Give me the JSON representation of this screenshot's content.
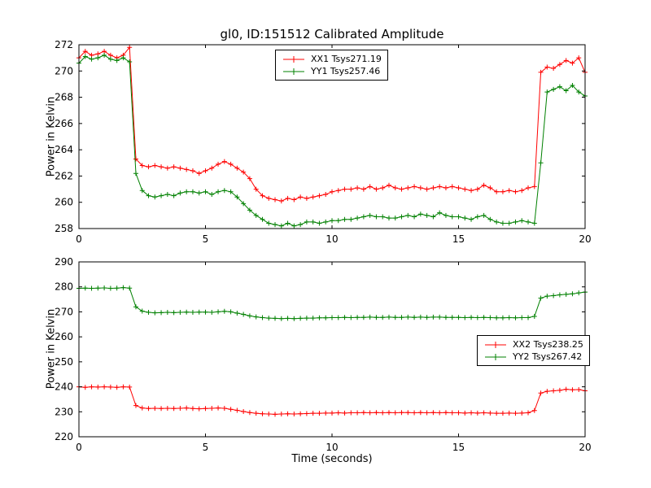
{
  "title": "gl0, ID:151512 Calibrated Amplitude",
  "chart_data": [
    {
      "type": "line",
      "marker": "+",
      "xlabel": "",
      "ylabel": "Power in Kelvin",
      "xlim": [
        0,
        20
      ],
      "ylim": [
        258,
        272
      ],
      "xticks": [
        0,
        5,
        10,
        15,
        20
      ],
      "yticks": [
        258,
        260,
        262,
        264,
        266,
        268,
        270,
        272
      ],
      "legend_position": "top-center",
      "grid": false,
      "x": [
        0,
        0.25,
        0.5,
        0.75,
        1,
        1.25,
        1.5,
        1.75,
        2,
        2.25,
        2.5,
        2.75,
        3,
        3.25,
        3.5,
        3.75,
        4,
        4.25,
        4.5,
        4.75,
        5,
        5.25,
        5.5,
        5.75,
        6,
        6.25,
        6.5,
        6.75,
        7,
        7.25,
        7.5,
        7.75,
        8,
        8.25,
        8.5,
        8.75,
        9,
        9.25,
        9.5,
        9.75,
        10,
        10.25,
        10.5,
        10.75,
        11,
        11.25,
        11.5,
        11.75,
        12,
        12.25,
        12.5,
        12.75,
        13,
        13.25,
        13.5,
        13.75,
        14,
        14.25,
        14.5,
        14.75,
        15,
        15.25,
        15.5,
        15.75,
        16,
        16.25,
        16.5,
        16.75,
        17,
        17.25,
        17.5,
        17.75,
        18,
        18.25,
        18.5,
        18.75,
        19,
        19.25,
        19.5,
        19.75,
        20
      ],
      "series": [
        {
          "name": "XX1 Tsys271.19",
          "color": "#ff0000",
          "values": [
            271.0,
            271.5,
            271.2,
            271.3,
            271.5,
            271.2,
            271.0,
            271.2,
            271.8,
            263.3,
            262.8,
            262.7,
            262.8,
            262.7,
            262.6,
            262.7,
            262.6,
            262.5,
            262.4,
            262.2,
            262.4,
            262.6,
            262.9,
            263.1,
            262.9,
            262.6,
            262.3,
            261.8,
            261.0,
            260.5,
            260.3,
            260.2,
            260.1,
            260.3,
            260.2,
            260.4,
            260.3,
            260.4,
            260.5,
            260.6,
            260.8,
            260.9,
            261.0,
            261.0,
            261.1,
            261.0,
            261.2,
            261.0,
            261.1,
            261.3,
            261.1,
            261.0,
            261.1,
            261.2,
            261.1,
            261.0,
            261.1,
            261.2,
            261.1,
            261.2,
            261.1,
            261.0,
            260.9,
            261.0,
            261.3,
            261.1,
            260.8,
            260.8,
            260.9,
            260.8,
            260.9,
            261.1,
            261.2,
            269.9,
            270.3,
            270.2,
            270.5,
            270.8,
            270.6,
            271.0,
            269.9
          ]
        },
        {
          "name": "YY1 Tsys257.46",
          "color": "#008000",
          "values": [
            270.6,
            271.1,
            270.9,
            271.0,
            271.2,
            270.9,
            270.8,
            271.0,
            270.7,
            262.2,
            260.9,
            260.5,
            260.4,
            260.5,
            260.6,
            260.5,
            260.7,
            260.8,
            260.8,
            260.7,
            260.8,
            260.6,
            260.8,
            260.9,
            260.8,
            260.4,
            259.9,
            259.4,
            259.0,
            258.7,
            258.4,
            258.3,
            258.2,
            258.4,
            258.2,
            258.3,
            258.5,
            258.5,
            258.4,
            258.5,
            258.6,
            258.6,
            258.7,
            258.7,
            258.8,
            258.9,
            259.0,
            258.9,
            258.9,
            258.8,
            258.8,
            258.9,
            259.0,
            258.9,
            259.1,
            259.0,
            258.9,
            259.2,
            259.0,
            258.9,
            258.9,
            258.8,
            258.7,
            258.9,
            259.0,
            258.7,
            258.5,
            258.4,
            258.4,
            258.5,
            258.6,
            258.5,
            258.4,
            263.0,
            268.4,
            268.6,
            268.8,
            268.5,
            268.9,
            268.4,
            268.1
          ]
        }
      ]
    },
    {
      "type": "line",
      "marker": "+",
      "xlabel": "Time (seconds)",
      "ylabel": "Power in Kelvin",
      "xlim": [
        0,
        20
      ],
      "ylim": [
        220,
        290
      ],
      "xticks": [
        0,
        5,
        10,
        15,
        20
      ],
      "yticks": [
        220,
        230,
        240,
        250,
        260,
        270,
        280,
        290
      ],
      "legend_position": "right",
      "grid": false,
      "x": [
        0,
        0.25,
        0.5,
        0.75,
        1,
        1.25,
        1.5,
        1.75,
        2,
        2.25,
        2.5,
        2.75,
        3,
        3.25,
        3.5,
        3.75,
        4,
        4.25,
        4.5,
        4.75,
        5,
        5.25,
        5.5,
        5.75,
        6,
        6.25,
        6.5,
        6.75,
        7,
        7.25,
        7.5,
        7.75,
        8,
        8.25,
        8.5,
        8.75,
        9,
        9.25,
        9.5,
        9.75,
        10,
        10.25,
        10.5,
        10.75,
        11,
        11.25,
        11.5,
        11.75,
        12,
        12.25,
        12.5,
        12.75,
        13,
        13.25,
        13.5,
        13.75,
        14,
        14.25,
        14.5,
        14.75,
        15,
        15.25,
        15.5,
        15.75,
        16,
        16.25,
        16.5,
        16.75,
        17,
        17.25,
        17.5,
        17.75,
        18,
        18.25,
        18.5,
        18.75,
        19,
        19.25,
        19.5,
        19.75,
        20
      ],
      "series": [
        {
          "name": "XX2 Tsys238.25",
          "color": "#ff0000",
          "values": [
            240.0,
            239.8,
            240.0,
            239.9,
            240.0,
            239.9,
            239.8,
            240.0,
            239.9,
            232.5,
            231.5,
            231.3,
            231.4,
            231.3,
            231.4,
            231.3,
            231.4,
            231.5,
            231.3,
            231.2,
            231.3,
            231.4,
            231.5,
            231.4,
            231.0,
            230.6,
            230.1,
            229.7,
            229.4,
            229.2,
            229.1,
            229.0,
            229.1,
            229.2,
            229.1,
            229.2,
            229.3,
            229.4,
            229.4,
            229.5,
            229.5,
            229.6,
            229.5,
            229.6,
            229.6,
            229.7,
            229.6,
            229.7,
            229.6,
            229.7,
            229.6,
            229.7,
            229.7,
            229.6,
            229.7,
            229.6,
            229.7,
            229.6,
            229.7,
            229.6,
            229.6,
            229.5,
            229.6,
            229.5,
            229.6,
            229.5,
            229.4,
            229.4,
            229.5,
            229.4,
            229.5,
            229.6,
            230.5,
            237.5,
            238.2,
            238.4,
            238.6,
            239.0,
            238.8,
            238.9,
            238.4
          ]
        },
        {
          "name": "YY2 Tsys267.42",
          "color": "#008000",
          "values": [
            279.4,
            279.5,
            279.4,
            279.5,
            279.6,
            279.4,
            279.5,
            279.7,
            279.5,
            272.0,
            270.3,
            269.8,
            269.6,
            269.7,
            269.8,
            269.7,
            269.8,
            269.9,
            269.8,
            269.9,
            269.9,
            269.8,
            270.0,
            270.2,
            270.0,
            269.5,
            269.0,
            268.4,
            268.0,
            267.7,
            267.5,
            267.4,
            267.3,
            267.4,
            267.3,
            267.4,
            267.5,
            267.5,
            267.6,
            267.6,
            267.7,
            267.7,
            267.8,
            267.7,
            267.8,
            267.8,
            267.9,
            267.8,
            267.8,
            267.9,
            267.8,
            267.8,
            267.9,
            267.8,
            267.9,
            267.8,
            267.9,
            267.9,
            267.8,
            267.8,
            267.8,
            267.7,
            267.8,
            267.7,
            267.8,
            267.7,
            267.6,
            267.6,
            267.7,
            267.6,
            267.7,
            267.7,
            268.2,
            275.5,
            276.3,
            276.5,
            276.8,
            277.0,
            277.2,
            277.6,
            277.9
          ]
        }
      ]
    }
  ]
}
